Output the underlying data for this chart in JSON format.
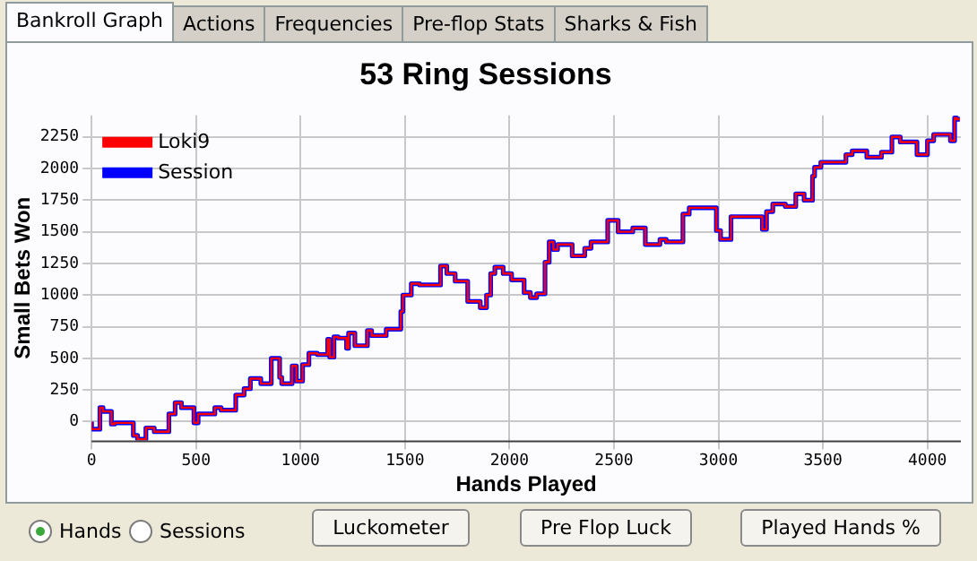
{
  "chart_data": {
    "type": "step",
    "title": "53 Ring Sessions",
    "xlabel": "Hands Played",
    "ylabel": "Small Bets Won",
    "annotations": [
      "Bankroll Graph",
      "Actions",
      "Frequencies",
      "Pre-flop Stats",
      "Sharks & Fish",
      "Hands",
      "Sessions",
      "Luckometer",
      "Pre Flop Luck",
      "Played Hands %"
    ],
    "x": [
      0,
      40,
      55,
      95,
      110,
      200,
      220,
      260,
      300,
      370,
      400,
      430,
      490,
      510,
      590,
      620,
      690,
      730,
      760,
      810,
      860,
      900,
      910,
      960,
      980,
      1010,
      1040,
      1080,
      1130,
      1140,
      1160,
      1180,
      1220,
      1230,
      1260,
      1320,
      1340,
      1410,
      1440,
      1480,
      1490,
      1530,
      1570,
      1670,
      1700,
      1740,
      1800,
      1860,
      1890,
      1910,
      1930,
      1970,
      2010,
      2070,
      2100,
      2130,
      2170,
      2190,
      2210,
      2230,
      2300,
      2360,
      2390,
      2470,
      2520,
      2590,
      2650,
      2720,
      2750,
      2830,
      2860,
      2930,
      2990,
      3010,
      3060,
      3120,
      3210,
      3230,
      3260,
      3320,
      3370,
      3410,
      3450,
      3460,
      3490,
      3610,
      3640,
      3710,
      3780,
      3830,
      3870,
      3950,
      4000,
      4030,
      4110,
      4130,
      4140,
      4155
    ],
    "series": [
      {
        "name": "Session",
        "color": "#0000ff",
        "values": [
          0,
          -60,
          110,
          80,
          -20,
          -10,
          -110,
          -140,
          -50,
          -80,
          60,
          150,
          110,
          -10,
          60,
          110,
          90,
          210,
          260,
          340,
          300,
          500,
          350,
          300,
          440,
          320,
          450,
          540,
          530,
          650,
          510,
          670,
          660,
          580,
          700,
          600,
          720,
          680,
          730,
          730,
          870,
          1000,
          1090,
          1080,
          1230,
          1170,
          1110,
          950,
          900,
          1000,
          1170,
          1220,
          1170,
          1120,
          1020,
          980,
          1010,
          1260,
          1420,
          1360,
          1400,
          1310,
          1370,
          1420,
          1590,
          1500,
          1530,
          1400,
          1440,
          1420,
          1640,
          1690,
          1690,
          1510,
          1440,
          1620,
          1620,
          1520,
          1660,
          1720,
          1700,
          1800,
          1750,
          1940,
          2010,
          2050,
          2110,
          2140,
          2090,
          2130,
          2250,
          2210,
          2110,
          2220,
          2270,
          2220,
          2400,
          2390
        ]
      },
      {
        "name": "Loki9",
        "color": "#ff0000",
        "values": [
          0,
          -60,
          110,
          80,
          -20,
          -10,
          -110,
          -140,
          -50,
          -80,
          60,
          150,
          110,
          -10,
          60,
          110,
          90,
          210,
          260,
          340,
          300,
          500,
          350,
          300,
          440,
          320,
          450,
          540,
          530,
          650,
          510,
          670,
          660,
          580,
          700,
          600,
          720,
          680,
          730,
          730,
          870,
          1000,
          1090,
          1080,
          1230,
          1170,
          1110,
          950,
          900,
          1000,
          1170,
          1220,
          1170,
          1120,
          1020,
          980,
          1010,
          1260,
          1420,
          1360,
          1400,
          1310,
          1370,
          1420,
          1590,
          1500,
          1530,
          1400,
          1440,
          1420,
          1640,
          1690,
          1690,
          1510,
          1440,
          1620,
          1620,
          1520,
          1660,
          1720,
          1700,
          1800,
          1750,
          1940,
          2010,
          2050,
          2110,
          2140,
          2090,
          2130,
          2250,
          2210,
          2110,
          2220,
          2270,
          2220,
          2400,
          2390
        ]
      }
    ],
    "xlim": [
      0,
      4160
    ],
    "xticks": [
      0,
      500,
      1000,
      1500,
      2000,
      2500,
      3000,
      3500,
      4000
    ],
    "ylim": [
      -150,
      2420
    ],
    "yticks": [
      0,
      250,
      500,
      750,
      1000,
      1250,
      1500,
      1750,
      2000,
      2250
    ],
    "grid": true,
    "legend": "top left",
    "marker": "none",
    "line_style": "solid"
  }
}
